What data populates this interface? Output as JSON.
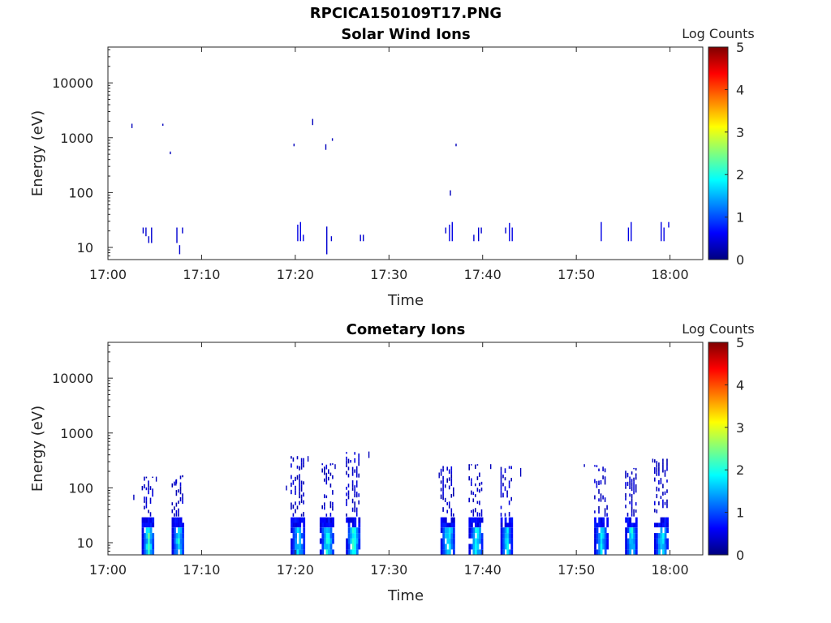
{
  "figure": {
    "title": "RPCICA150109T17.PNG"
  },
  "colorscale": {
    "stops": [
      "#00007f",
      "#0000ff",
      "#007fff",
      "#00ffff",
      "#7fff7f",
      "#ffff00",
      "#ff7f00",
      "#ff0000",
      "#7f0000"
    ]
  },
  "chart_data": [
    {
      "type": "heatmap",
      "title": "Solar Wind Ions",
      "xlabel": "Time",
      "ylabel": "Energy (eV)",
      "x_unit": "minutes after 17:00",
      "xlim": [
        0,
        63.5
      ],
      "ylim": [
        6,
        45000
      ],
      "y_scale": "log",
      "xticks": [
        0,
        10,
        20,
        30,
        40,
        50,
        60
      ],
      "xtick_labels": [
        "17:00",
        "17:10",
        "17:20",
        "17:30",
        "17:40",
        "17:50",
        "18:00"
      ],
      "yticks": [
        10,
        100,
        1000,
        10000
      ],
      "ytick_labels": [
        "10",
        "100",
        "1000",
        "10000"
      ],
      "colorbar": {
        "label": "Log Counts",
        "range": [
          0,
          5
        ],
        "ticks": [
          "0",
          "1",
          "2",
          "3",
          "4",
          "5"
        ]
      },
      "cells": [
        {
          "t": 2.5,
          "e0": 1500,
          "e1": 1800,
          "v": 0.3
        },
        {
          "t": 5.8,
          "e0": 1650,
          "e1": 1800,
          "v": 0.3
        },
        {
          "t": 6.6,
          "e0": 500,
          "e1": 560,
          "v": 0.3
        },
        {
          "t": 3.7,
          "e0": 18,
          "e1": 23,
          "v": 0.4
        },
        {
          "t": 4.0,
          "e0": 16,
          "e1": 23,
          "v": 0.4
        },
        {
          "t": 4.3,
          "e0": 12,
          "e1": 16,
          "v": 0.4
        },
        {
          "t": 4.6,
          "e0": 12,
          "e1": 23,
          "v": 0.4
        },
        {
          "t": 7.3,
          "e0": 12,
          "e1": 23,
          "v": 0.4
        },
        {
          "t": 7.6,
          "e0": 7.5,
          "e1": 11,
          "v": 0.4
        },
        {
          "t": 7.9,
          "e0": 18,
          "e1": 23,
          "v": 0.4
        },
        {
          "t": 19.8,
          "e0": 700,
          "e1": 780,
          "v": 0.3
        },
        {
          "t": 21.8,
          "e0": 1700,
          "e1": 2200,
          "v": 0.3
        },
        {
          "t": 23.2,
          "e0": 600,
          "e1": 760,
          "v": 0.3
        },
        {
          "t": 23.9,
          "e0": 880,
          "e1": 980,
          "v": 0.3
        },
        {
          "t": 20.2,
          "e0": 13,
          "e1": 26,
          "v": 0.5
        },
        {
          "t": 20.5,
          "e0": 13,
          "e1": 29,
          "v": 0.5
        },
        {
          "t": 20.8,
          "e0": 13,
          "e1": 17,
          "v": 0.5
        },
        {
          "t": 23.3,
          "e0": 7.5,
          "e1": 24,
          "v": 0.4
        },
        {
          "t": 23.8,
          "e0": 13,
          "e1": 16,
          "v": 0.4
        },
        {
          "t": 26.9,
          "e0": 13,
          "e1": 17,
          "v": 0.4
        },
        {
          "t": 27.2,
          "e0": 13,
          "e1": 17,
          "v": 0.4
        },
        {
          "t": 36.5,
          "e0": 88,
          "e1": 110,
          "v": 0.3
        },
        {
          "t": 37.1,
          "e0": 700,
          "e1": 780,
          "v": 0.3
        },
        {
          "t": 36.0,
          "e0": 18,
          "e1": 23,
          "v": 0.4
        },
        {
          "t": 36.4,
          "e0": 13,
          "e1": 26,
          "v": 0.5
        },
        {
          "t": 36.7,
          "e0": 13,
          "e1": 29,
          "v": 0.5
        },
        {
          "t": 39.0,
          "e0": 13,
          "e1": 17,
          "v": 0.4
        },
        {
          "t": 39.5,
          "e0": 13,
          "e1": 23,
          "v": 0.4
        },
        {
          "t": 39.8,
          "e0": 18,
          "e1": 23,
          "v": 0.4
        },
        {
          "t": 42.4,
          "e0": 18,
          "e1": 23,
          "v": 0.4
        },
        {
          "t": 42.8,
          "e0": 13,
          "e1": 28,
          "v": 0.5
        },
        {
          "t": 43.1,
          "e0": 13,
          "e1": 23,
          "v": 0.5
        },
        {
          "t": 52.6,
          "e0": 13,
          "e1": 29,
          "v": 0.5
        },
        {
          "t": 55.5,
          "e0": 13,
          "e1": 23,
          "v": 0.5
        },
        {
          "t": 55.8,
          "e0": 13,
          "e1": 29,
          "v": 0.5
        },
        {
          "t": 59.0,
          "e0": 13,
          "e1": 29,
          "v": 0.5
        },
        {
          "t": 59.3,
          "e0": 13,
          "e1": 23,
          "v": 0.5
        },
        {
          "t": 59.8,
          "e0": 23,
          "e1": 29,
          "v": 0.5
        }
      ]
    },
    {
      "type": "heatmap",
      "title": "Cometary Ions",
      "xlabel": "Time",
      "ylabel": "Energy (eV)",
      "x_unit": "minutes after 17:00",
      "xlim": [
        0,
        63.5
      ],
      "ylim": [
        6,
        45000
      ],
      "y_scale": "log",
      "xticks": [
        0,
        10,
        20,
        30,
        40,
        50,
        60
      ],
      "xtick_labels": [
        "17:00",
        "17:10",
        "17:20",
        "17:30",
        "17:40",
        "17:50",
        "18:00"
      ],
      "yticks": [
        10,
        100,
        1000,
        10000
      ],
      "ytick_labels": [
        "10",
        "100",
        "1000",
        "10000"
      ],
      "colorbar": {
        "label": "Log Counts",
        "range": [
          0,
          5
        ],
        "ticks": [
          "0",
          "1",
          "2",
          "3",
          "4",
          "5"
        ]
      },
      "bursts": [
        {
          "t0": 3.6,
          "t1": 4.9,
          "peak": 2.0,
          "top": 160,
          "dense_top": 29,
          "sparse_top": 30
        },
        {
          "t0": 6.8,
          "t1": 8.1,
          "peak": 1.7,
          "top": 170,
          "dense_top": 29,
          "sparse_top": 30
        },
        {
          "t0": 19.5,
          "t1": 21.0,
          "peak": 1.6,
          "top": 380,
          "dense_top": 29,
          "sparse_top": 30
        },
        {
          "t0": 22.6,
          "t1": 24.1,
          "peak": 1.8,
          "top": 280,
          "dense_top": 29,
          "sparse_top": 30
        },
        {
          "t0": 25.4,
          "t1": 26.9,
          "peak": 2.0,
          "top": 450,
          "dense_top": 29,
          "sparse_top": 30
        },
        {
          "t0": 35.5,
          "t1": 37.0,
          "peak": 1.9,
          "top": 250,
          "dense_top": 29,
          "sparse_top": 30
        },
        {
          "t0": 38.5,
          "t1": 40.0,
          "peak": 1.7,
          "top": 270,
          "dense_top": 29,
          "sparse_top": 30
        },
        {
          "t0": 41.9,
          "t1": 43.1,
          "peak": 1.6,
          "top": 250,
          "dense_top": 29,
          "sparse_top": 30
        },
        {
          "t0": 51.9,
          "t1": 53.3,
          "peak": 1.5,
          "top": 260,
          "dense_top": 29,
          "sparse_top": 30
        },
        {
          "t0": 55.2,
          "t1": 56.4,
          "peak": 1.8,
          "top": 230,
          "dense_top": 29,
          "sparse_top": 30
        },
        {
          "t0": 58.3,
          "t1": 59.8,
          "peak": 1.7,
          "top": 340,
          "dense_top": 29,
          "sparse_top": 30
        }
      ],
      "sparse_cells": [
        {
          "t": 2.7,
          "e0": 60,
          "e1": 75,
          "v": 0.3
        },
        {
          "t": 5.1,
          "e0": 130,
          "e1": 160,
          "v": 0.3
        },
        {
          "t": 7.2,
          "e0": 110,
          "e1": 140,
          "v": 0.3
        },
        {
          "t": 19.0,
          "e0": 90,
          "e1": 110,
          "v": 0.3
        },
        {
          "t": 21.3,
          "e0": 300,
          "e1": 380,
          "v": 0.3
        },
        {
          "t": 24.2,
          "e0": 220,
          "e1": 270,
          "v": 0.3
        },
        {
          "t": 27.8,
          "e0": 350,
          "e1": 460,
          "v": 0.3
        },
        {
          "t": 35.3,
          "e0": 150,
          "e1": 190,
          "v": 0.3
        },
        {
          "t": 40.8,
          "e0": 220,
          "e1": 270,
          "v": 0.3
        },
        {
          "t": 44.0,
          "e0": 160,
          "e1": 230,
          "v": 0.3
        },
        {
          "t": 50.8,
          "e0": 240,
          "e1": 270,
          "v": 0.3
        },
        {
          "t": 58.1,
          "e0": 290,
          "e1": 340,
          "v": 0.3
        }
      ]
    }
  ]
}
